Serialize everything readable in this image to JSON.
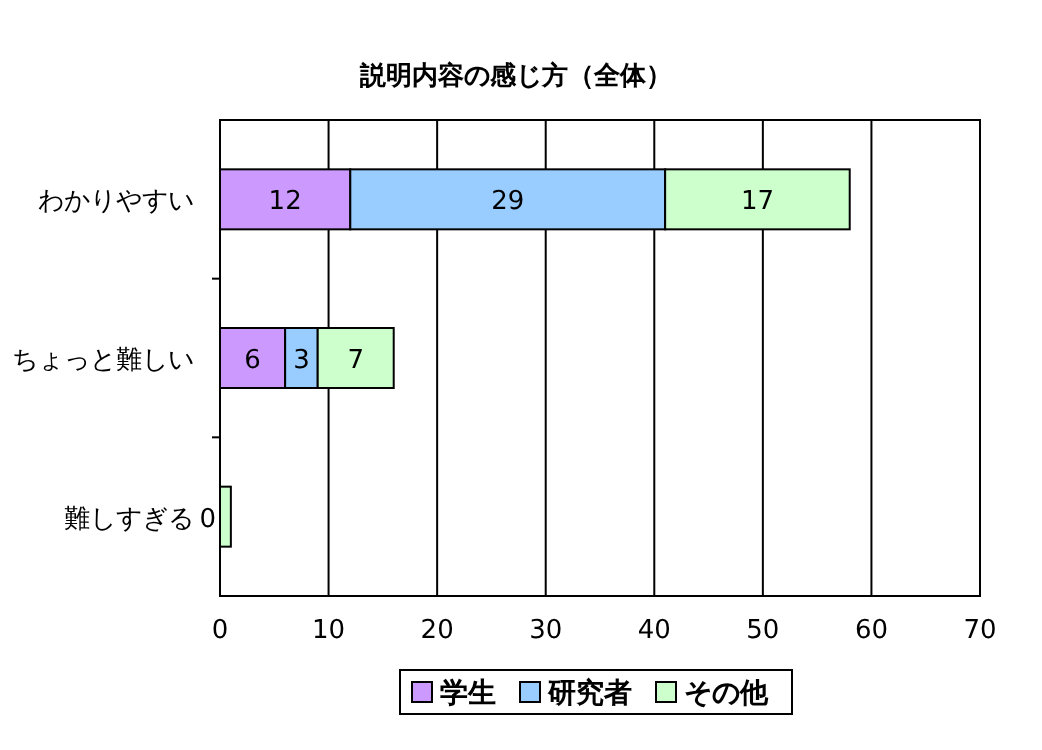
{
  "chart_data": {
    "type": "bar",
    "orientation": "horizontal",
    "stacked": true,
    "title": "説明内容の感じ方（全体）",
    "categories": [
      "わかりやすい",
      "ちょっと難しい",
      "難しすぎる"
    ],
    "series": [
      {
        "name": "学生",
        "color": "#cc99ff",
        "values": [
          12,
          6,
          0
        ],
        "value_labels": [
          "12",
          "6",
          "0"
        ]
      },
      {
        "name": "研究者",
        "color": "#99ccff",
        "values": [
          29,
          3,
          0
        ],
        "value_labels": [
          "29",
          "3",
          null
        ]
      },
      {
        "name": "その他",
        "color": "#ccffcc",
        "values": [
          17,
          7,
          1
        ],
        "value_labels": [
          "17",
          "7",
          null
        ]
      }
    ],
    "xlim": [
      0,
      70
    ],
    "xticks": [
      0,
      10,
      20,
      30,
      40,
      50,
      60,
      70
    ],
    "grid": "x",
    "legend": "bottom"
  }
}
